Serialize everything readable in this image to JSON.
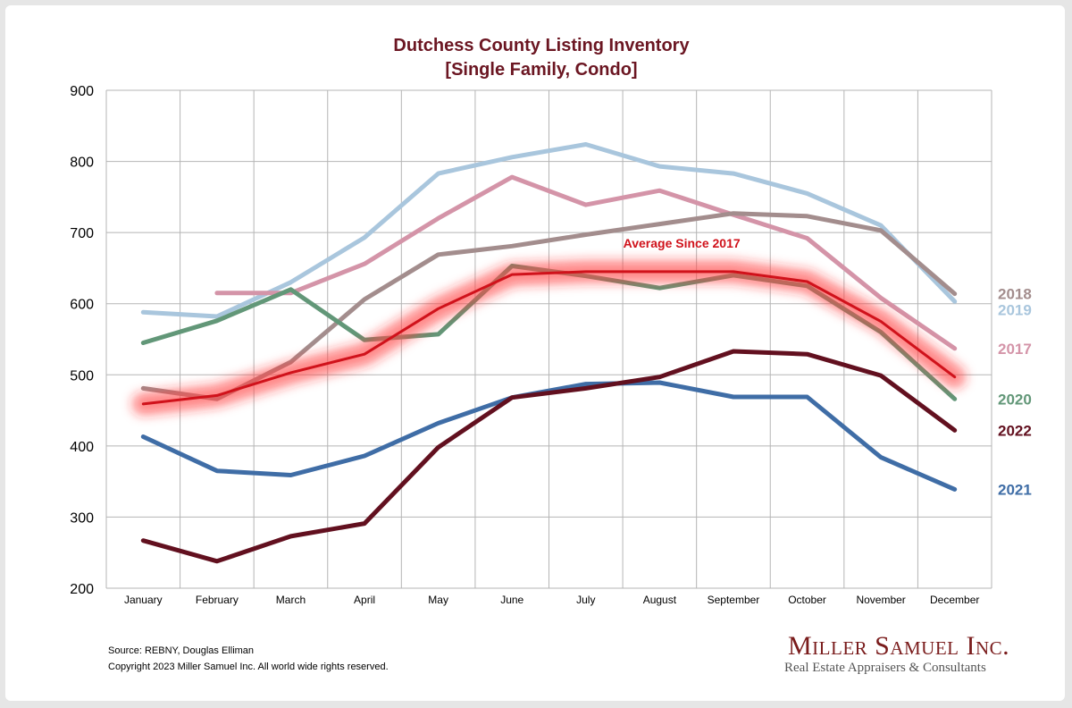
{
  "chart_data": {
    "type": "line",
    "title": [
      "Dutchess County Listing Inventory",
      "[Single Family, Condo]"
    ],
    "categories": [
      "January",
      "February",
      "March",
      "April",
      "May",
      "June",
      "July",
      "August",
      "September",
      "October",
      "November",
      "December"
    ],
    "ylim": [
      200,
      900
    ],
    "yticks": [
      200,
      300,
      400,
      500,
      600,
      700,
      800,
      900
    ],
    "grid": true,
    "series": [
      {
        "name": "2019",
        "color": "#a9c6dd",
        "values": [
          588,
          582,
          630,
          693,
          783,
          806,
          824,
          793,
          783,
          755,
          710,
          603
        ]
      },
      {
        "name": "2017",
        "color": "#d494a8",
        "values": [
          null,
          615,
          615,
          656,
          720,
          778,
          739,
          759,
          725,
          692,
          608,
          537
        ]
      },
      {
        "name": "2018",
        "color": "#a38d8d",
        "values": [
          481,
          466,
          518,
          606,
          669,
          681,
          697,
          712,
          727,
          723,
          703,
          614
        ]
      },
      {
        "name": "2020",
        "color": "#629778",
        "values": [
          545,
          576,
          620,
          549,
          557,
          653,
          639,
          622,
          640,
          625,
          560,
          466
        ]
      },
      {
        "name": "2021",
        "color": "#3f6da6",
        "values": [
          413,
          365,
          359,
          386,
          432,
          468,
          487,
          489,
          469,
          469,
          384,
          339
        ]
      },
      {
        "name": "2022",
        "color": "#62101f",
        "values": [
          267,
          238,
          273,
          291,
          398,
          468,
          481,
          497,
          533,
          529,
          499,
          422
        ]
      },
      {
        "name": "Average  Since 2017",
        "color": "#d0121b",
        "values": [
          459,
          471,
          503,
          529,
          593,
          641,
          645,
          645,
          645,
          631,
          575,
          497
        ]
      }
    ],
    "end_labels": [
      {
        "series": "2018",
        "text": "2018",
        "color": "#a38d8d"
      },
      {
        "series": "2019",
        "text": "2019",
        "color": "#a9c6dd"
      },
      {
        "series": "2017",
        "text": "2017",
        "color": "#d494a8"
      },
      {
        "series": "2020",
        "text": "2020",
        "color": "#629778"
      },
      {
        "series": "2022",
        "text": "2022",
        "color": "#62101f"
      },
      {
        "series": "2021",
        "text": "2021",
        "color": "#3f6da6"
      }
    ],
    "annotation": "Average  Since 2017"
  },
  "footer": {
    "source": "Source: REBNY, Douglas Elliman",
    "copyright": "Copyright 2023 Miller Samuel Inc.  All world wide rights reserved."
  },
  "brand": {
    "name": "Miller Samuel Inc.",
    "tagline": "Real Estate Appraisers & Consultants"
  }
}
